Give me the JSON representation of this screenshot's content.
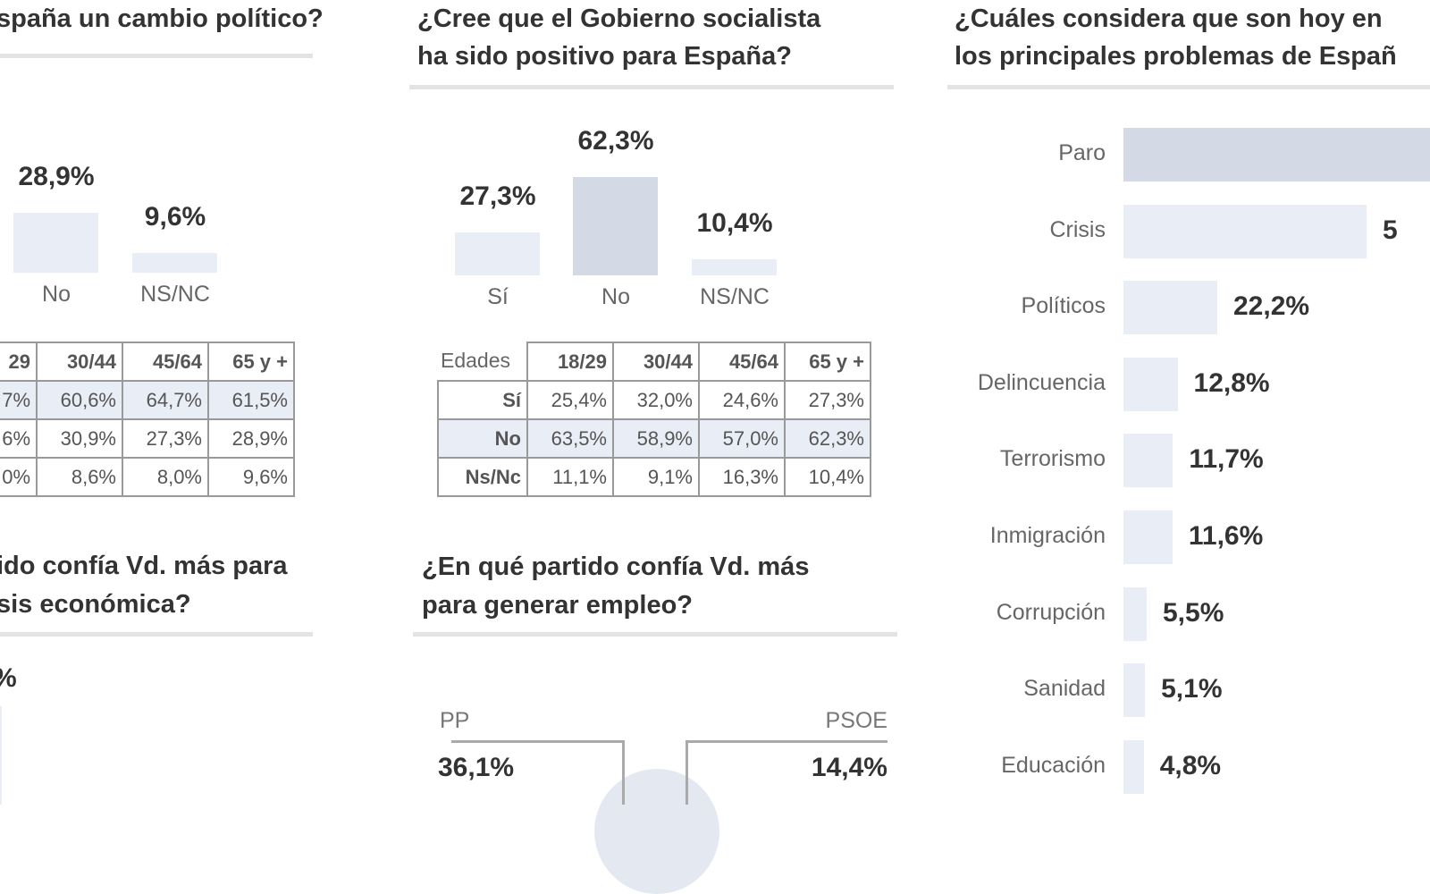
{
  "left": {
    "title": "spaña un cambio político?",
    "bars": [
      {
        "label": "No",
        "value": 28.9,
        "text": "28,9%"
      },
      {
        "label": "NS/NC",
        "value": 9.6,
        "text": "9,6%"
      }
    ],
    "table": {
      "header": [
        "29",
        "30/44",
        "45/64",
        "65 y +"
      ],
      "rows": [
        [
          "7%",
          "60,6%",
          "64,7%",
          "61,5%"
        ],
        [
          "6%",
          "30,9%",
          "27,3%",
          "28,9%"
        ],
        [
          "0%",
          "8,6%",
          "8,0%",
          "9,6%"
        ]
      ]
    },
    "title2": [
      "ido confía Vd. más para",
      "sis económica?"
    ],
    "partial_value": "%"
  },
  "middle": {
    "title": [
      "¿Cree que el Gobierno socialista",
      "ha sido positivo para España?"
    ],
    "bars": [
      {
        "label": "Sí",
        "value": 27.3,
        "text": "27,3%"
      },
      {
        "label": "No",
        "value": 62.3,
        "text": "62,3%"
      },
      {
        "label": "NS/NC",
        "value": 10.4,
        "text": "10,4%"
      }
    ],
    "table": {
      "corner": "Edades",
      "header": [
        "18/29",
        "30/44",
        "45/64",
        "65 y +"
      ],
      "rows": [
        [
          "Sí",
          "25,4%",
          "32,0%",
          "24,6%",
          "27,3%"
        ],
        [
          "No",
          "63,5%",
          "58,9%",
          "57,0%",
          "62,3%"
        ],
        [
          "Ns/Nc",
          "11,1%",
          "9,1%",
          "16,3%",
          "10,4%"
        ]
      ]
    },
    "title2": [
      "¿En qué partido confía Vd. más",
      "para generar empleo?"
    ],
    "parties": [
      {
        "name": "PP",
        "text": "36,1%",
        "value": 36.1
      },
      {
        "name": "PSOE",
        "text": "14,4%",
        "value": 14.4
      }
    ]
  },
  "chart_data": {
    "type": "bar",
    "title": "¿Cuáles considera que son hoy en / los principales problemas de Españ",
    "title_lines": [
      "¿Cuáles considera que son hoy en",
      "los principales problemas de Españ"
    ],
    "categories": [
      "Paro",
      "Crisis",
      "Políticos",
      "Delincuencia",
      "Terrorismo",
      "Inmigración",
      "Corrupción",
      "Sanidad",
      "Educación"
    ],
    "values": [
      null,
      57.5,
      22.2,
      12.8,
      11.7,
      11.6,
      5.5,
      5.1,
      4.8
    ],
    "labels": [
      "",
      "5",
      "22,2%",
      "12,8%",
      "11,7%",
      "11,6%",
      "5,5%",
      "5,1%",
      "4,8%"
    ],
    "colors": {
      "highlight": "#d3dae6",
      "bar": "#e9edf5"
    }
  }
}
